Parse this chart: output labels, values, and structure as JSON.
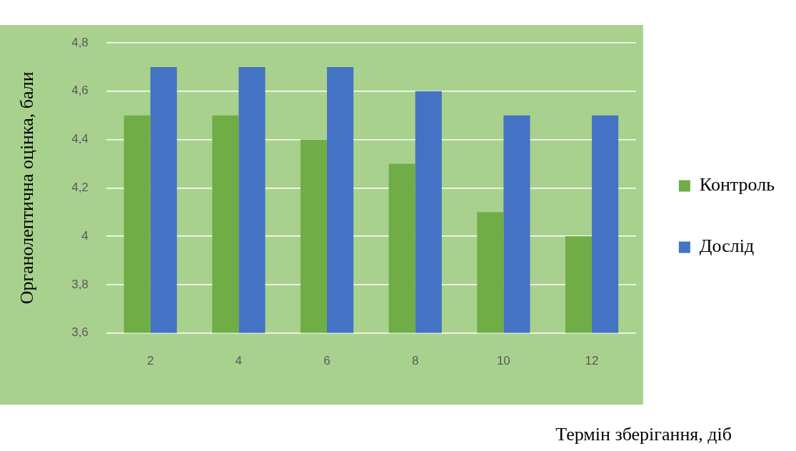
{
  "chart_data": {
    "type": "bar",
    "xlabel": "Термін зберігання, діб",
    "ylabel": "Органолептична оцінка, бали",
    "categories": [
      "2",
      "4",
      "6",
      "8",
      "10",
      "12"
    ],
    "series": [
      {
        "name": "Контроль",
        "color": "#70ad47",
        "values": [
          4.5,
          4.5,
          4.4,
          4.3,
          4.1,
          4.0
        ]
      },
      {
        "name": "Дослід",
        "color": "#4472c4",
        "values": [
          4.7,
          4.7,
          4.7,
          4.6,
          4.5,
          4.5
        ]
      }
    ],
    "ylim": [
      3.6,
      4.8
    ],
    "yticks": [
      {
        "value": 3.6,
        "label": "3,6"
      },
      {
        "value": 3.8,
        "label": "3,8"
      },
      {
        "value": 4,
        "label": "4"
      },
      {
        "value": 4.2,
        "label": "4,2"
      },
      {
        "value": 4.4,
        "label": "4,4"
      },
      {
        "value": 4.6,
        "label": "4,6"
      },
      {
        "value": 4.8,
        "label": "4,8"
      }
    ],
    "grid": "y",
    "legend": "right"
  }
}
